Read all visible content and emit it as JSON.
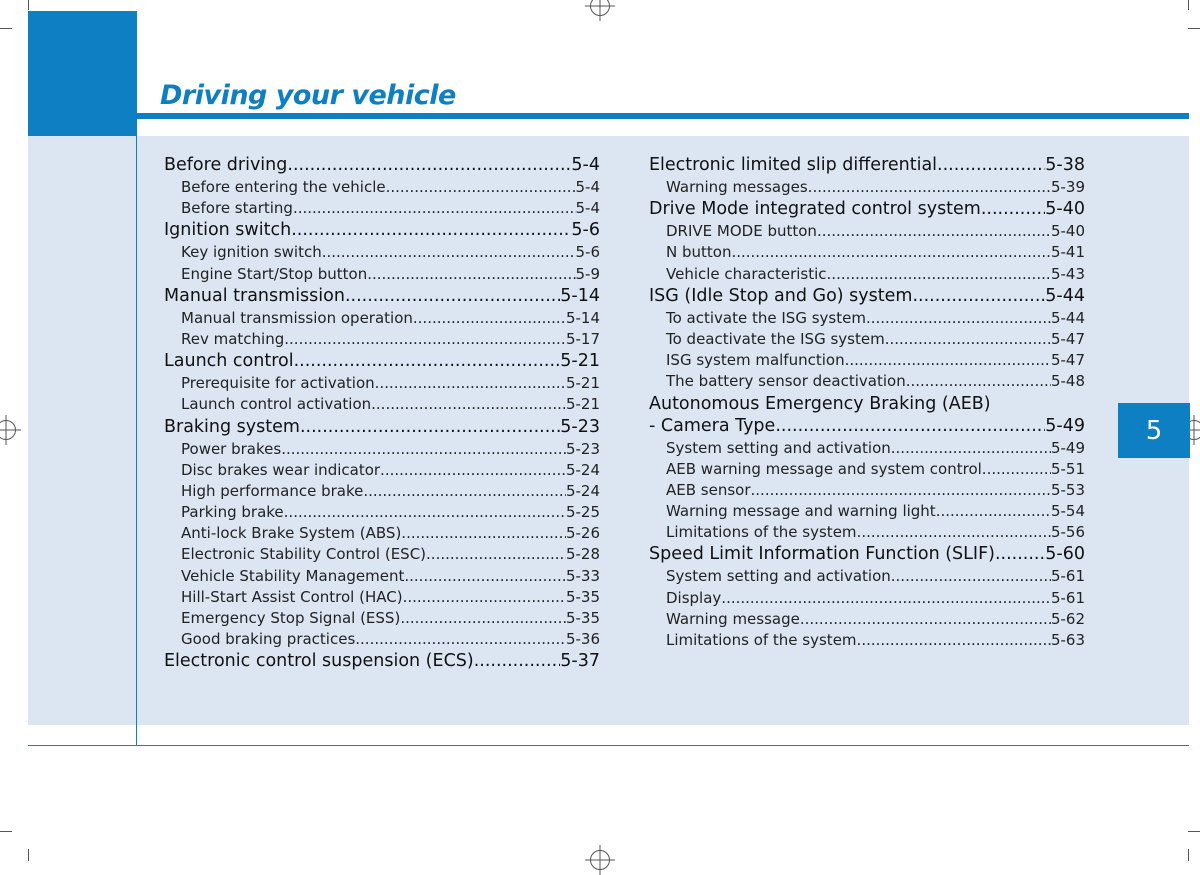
{
  "header": {
    "title": "Driving your vehicle",
    "chapter_tab": "5"
  },
  "toc": {
    "left": [
      {
        "kind": "main",
        "title": "Before driving",
        "page": "5-4"
      },
      {
        "kind": "sub",
        "title": "Before entering the vehicle",
        "page": "5-4"
      },
      {
        "kind": "sub",
        "title": "Before starting",
        "page": "5-4"
      },
      {
        "kind": "main",
        "title": "Ignition switch",
        "page": "5-6"
      },
      {
        "kind": "sub",
        "title": "Key ignition switch",
        "page": "5-6"
      },
      {
        "kind": "sub",
        "title": "Engine Start/Stop button",
        "page": "5-9"
      },
      {
        "kind": "main",
        "title": "Manual transmission",
        "page": "5-14"
      },
      {
        "kind": "sub",
        "title": "Manual transmission operation",
        "page": "5-14"
      },
      {
        "kind": "sub",
        "title": "Rev matching",
        "page": "5-17"
      },
      {
        "kind": "main",
        "title": "Launch control",
        "page": "5-21"
      },
      {
        "kind": "sub",
        "title": "Prerequisite for activation",
        "page": "5-21"
      },
      {
        "kind": "sub",
        "title": "Launch control activation",
        "page": "5-21"
      },
      {
        "kind": "main",
        "title": "Braking system",
        "page": "5-23"
      },
      {
        "kind": "sub",
        "title": "Power brakes",
        "page": "5-23"
      },
      {
        "kind": "sub",
        "title": "Disc brakes wear indicator",
        "page": "5-24"
      },
      {
        "kind": "sub",
        "title": "High performance brake",
        "page": "5-24"
      },
      {
        "kind": "sub",
        "title": "Parking brake",
        "page": "5-25"
      },
      {
        "kind": "sub",
        "title": "Anti-lock Brake System (ABS)",
        "page": "5-26"
      },
      {
        "kind": "sub",
        "title": "Electronic Stability Control (ESC)",
        "page": "5-28"
      },
      {
        "kind": "sub",
        "title": "Vehicle Stability Management",
        "page": "5-33"
      },
      {
        "kind": "sub",
        "title": "Hill-Start Assist Control (HAC)",
        "page": "5-35"
      },
      {
        "kind": "sub",
        "title": "Emergency Stop Signal (ESS)",
        "page": "5-35"
      },
      {
        "kind": "sub",
        "title": "Good braking practices",
        "page": "5-36"
      },
      {
        "kind": "main",
        "title": "Electronic control suspension (ECS)",
        "page": "5-37"
      }
    ],
    "right": [
      {
        "kind": "main",
        "title": "Electronic limited slip differential",
        "page": "5-38"
      },
      {
        "kind": "sub",
        "title": "Warning messages",
        "page": "5-39"
      },
      {
        "kind": "main",
        "title": "Drive Mode integrated control system",
        "page": "5-40"
      },
      {
        "kind": "sub",
        "title": "DRIVE MODE button",
        "page": "5-40"
      },
      {
        "kind": "sub",
        "title": "N button",
        "page": "5-41"
      },
      {
        "kind": "sub",
        "title": "Vehicle characteristic",
        "page": "5-43"
      },
      {
        "kind": "main",
        "title": "ISG (Idle Stop and Go) system",
        "page": "5-44"
      },
      {
        "kind": "sub",
        "title": "To activate the ISG system",
        "page": "5-44"
      },
      {
        "kind": "sub",
        "title": "To deactivate the ISG system",
        "page": "5-47"
      },
      {
        "kind": "sub",
        "title": "ISG system malfunction",
        "page": "5-47"
      },
      {
        "kind": "sub",
        "title": "The battery sensor deactivation",
        "page": "5-48"
      },
      {
        "kind": "plain",
        "title": "Autonomous Emergency Braking (AEB)"
      },
      {
        "kind": "main",
        "title": "- Camera Type",
        "page": "5-49"
      },
      {
        "kind": "sub",
        "title": "System setting and activation",
        "page": "5-49"
      },
      {
        "kind": "sub",
        "title": "AEB warning message and system control",
        "page": "5-51"
      },
      {
        "kind": "sub",
        "title": "AEB sensor",
        "page": "5-53"
      },
      {
        "kind": "sub",
        "title": "Warning message and warning light",
        "page": "5-54"
      },
      {
        "kind": "sub",
        "title": "Limitations of the system",
        "page": "5-56"
      },
      {
        "kind": "main",
        "title": "Speed Limit Information Function (SLIF)",
        "page": "5-60"
      },
      {
        "kind": "sub",
        "title": "System setting and activation",
        "page": "5-61"
      },
      {
        "kind": "sub",
        "title": "Display",
        "page": "5-61"
      },
      {
        "kind": "sub",
        "title": "Warning message",
        "page": "5-62"
      },
      {
        "kind": "sub",
        "title": "Limitations of the system",
        "page": "5-63"
      }
    ]
  }
}
